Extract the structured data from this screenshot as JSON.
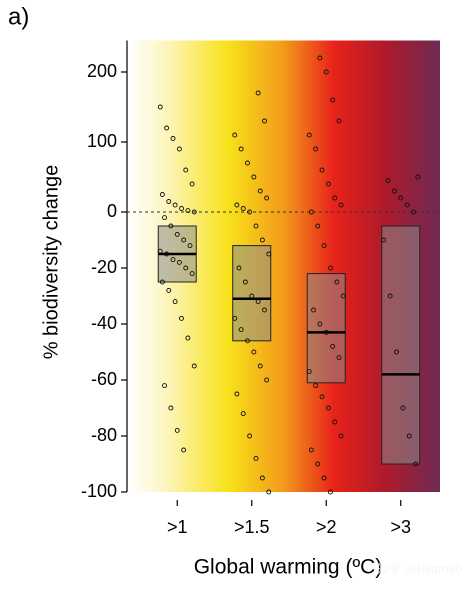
{
  "panel_label": "a)",
  "watermark": "知乎 @Hydro90",
  "chart_data": {
    "type": "box",
    "ylabel": "% biodiversity change",
    "xlabel": "Global warming (ºC)",
    "categories": [
      ">1",
      ">1.5",
      ">2",
      ">3"
    ],
    "q1": [
      -25,
      -46,
      -61,
      -90
    ],
    "median": [
      -15,
      -31,
      -43,
      -58
    ],
    "q3": [
      -5,
      -12,
      -22,
      -5
    ],
    "points": [
      [
        150,
        120,
        105,
        90,
        60,
        40,
        25,
        15,
        10,
        5,
        2,
        0,
        -2,
        -5,
        -8,
        -10,
        -12,
        -14,
        -15,
        -17,
        -18,
        -20,
        -22,
        -25,
        -28,
        -32,
        -38,
        -45,
        -55,
        -62,
        -70,
        -78,
        -85
      ],
      [
        170,
        130,
        110,
        90,
        70,
        50,
        30,
        20,
        10,
        5,
        0,
        -5,
        -10,
        -15,
        -20,
        -25,
        -30,
        -32,
        -35,
        -38,
        -42,
        -46,
        -50,
        -55,
        -60,
        -65,
        -72,
        -80,
        -88,
        -95,
        -100
      ],
      [
        220,
        200,
        160,
        130,
        110,
        90,
        60,
        40,
        20,
        10,
        0,
        -5,
        -12,
        -20,
        -25,
        -30,
        -35,
        -40,
        -43,
        -48,
        -52,
        -57,
        -62,
        -66,
        -70,
        -75,
        -80,
        -85,
        -90,
        -95,
        -100
      ],
      [
        50,
        45,
        30,
        20,
        10,
        0,
        -10,
        -30,
        -50,
        -70,
        -80,
        -90
      ]
    ],
    "ylim": [
      -100,
      245
    ],
    "yscale": "split",
    "ysplit": 0,
    "yticks": [
      -100,
      -80,
      -60,
      -40,
      -20,
      0,
      100,
      200
    ],
    "reference_line": 0,
    "box_color": "#8c8c8c"
  }
}
